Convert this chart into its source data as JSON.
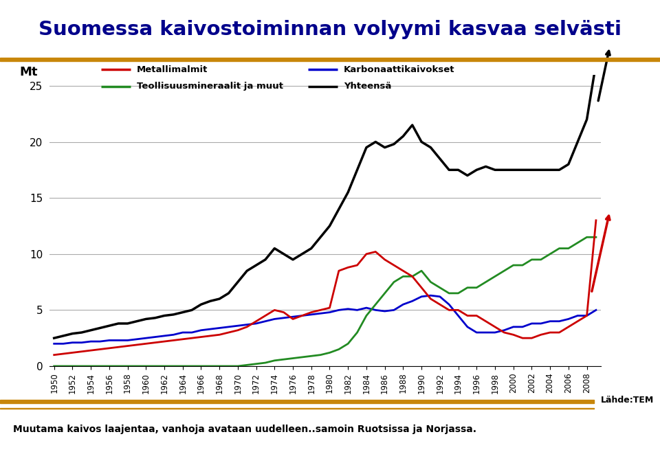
{
  "title": "Suomessa kaivostoiminnan volyymi kasvaa selvästi",
  "ylabel": "Mt",
  "subtitle": "Muutama kaivos laajentaa, vanhoja avataan uudelleen..samoin Ruotsissa ja Norjassa.",
  "source": "Lähde:TEM",
  "legend_labels": [
    "Metallimalmit",
    "Karbonaattikaivokset",
    "Teollisuusmineraalit ja muut",
    "Yhteensä"
  ],
  "legend_colors": [
    "#cc0000",
    "#0000cc",
    "#228B22",
    "#000000"
  ],
  "title_color": "#00008B",
  "title_bar_color": "#C8860A",
  "years": [
    1950,
    1951,
    1952,
    1953,
    1954,
    1955,
    1956,
    1957,
    1958,
    1959,
    1960,
    1961,
    1962,
    1963,
    1964,
    1965,
    1966,
    1967,
    1968,
    1969,
    1970,
    1971,
    1972,
    1973,
    1974,
    1975,
    1976,
    1977,
    1978,
    1979,
    1980,
    1981,
    1982,
    1983,
    1984,
    1985,
    1986,
    1987,
    1988,
    1989,
    1990,
    1991,
    1992,
    1993,
    1994,
    1995,
    1996,
    1997,
    1998,
    1999,
    2000,
    2001,
    2002,
    2003,
    2004,
    2005,
    2006,
    2007,
    2008,
    2009
  ],
  "metallimalmit": [
    1.0,
    1.1,
    1.2,
    1.3,
    1.4,
    1.5,
    1.6,
    1.7,
    1.8,
    1.9,
    2.0,
    2.1,
    2.2,
    2.3,
    2.4,
    2.5,
    2.6,
    2.7,
    2.8,
    3.0,
    3.2,
    3.5,
    4.0,
    4.5,
    5.0,
    4.8,
    4.2,
    4.5,
    4.8,
    5.0,
    5.2,
    8.5,
    8.8,
    9.0,
    10.0,
    10.2,
    9.5,
    9.0,
    8.5,
    8.0,
    7.0,
    6.0,
    5.5,
    5.0,
    5.0,
    4.5,
    4.5,
    4.0,
    3.5,
    3.0,
    2.8,
    2.5,
    2.5,
    2.8,
    3.0,
    3.0,
    3.5,
    4.0,
    4.5,
    13.0
  ],
  "karbonaatti": [
    2.0,
    2.0,
    2.1,
    2.1,
    2.2,
    2.2,
    2.3,
    2.3,
    2.3,
    2.4,
    2.5,
    2.6,
    2.7,
    2.8,
    3.0,
    3.0,
    3.2,
    3.3,
    3.4,
    3.5,
    3.6,
    3.7,
    3.8,
    4.0,
    4.2,
    4.3,
    4.4,
    4.5,
    4.6,
    4.7,
    4.8,
    5.0,
    5.1,
    5.0,
    5.2,
    5.0,
    4.9,
    5.0,
    5.5,
    5.8,
    6.2,
    6.3,
    6.2,
    5.5,
    4.5,
    3.5,
    3.0,
    3.0,
    3.0,
    3.2,
    3.5,
    3.5,
    3.8,
    3.8,
    4.0,
    4.0,
    4.2,
    4.5,
    4.5,
    5.0
  ],
  "teollisuus": [
    0.0,
    0.0,
    0.0,
    0.0,
    0.0,
    0.0,
    0.0,
    0.0,
    0.0,
    0.0,
    0.0,
    0.0,
    0.0,
    0.0,
    0.0,
    0.0,
    0.0,
    0.0,
    0.0,
    0.0,
    0.0,
    0.1,
    0.2,
    0.3,
    0.5,
    0.6,
    0.7,
    0.8,
    0.9,
    1.0,
    1.2,
    1.5,
    2.0,
    3.0,
    4.5,
    5.5,
    6.5,
    7.5,
    8.0,
    8.0,
    8.5,
    7.5,
    7.0,
    6.5,
    6.5,
    7.0,
    7.0,
    7.5,
    8.0,
    8.5,
    9.0,
    9.0,
    9.5,
    9.5,
    10.0,
    10.5,
    10.5,
    11.0,
    11.5,
    11.5
  ],
  "yhteensa": [
    2.5,
    2.7,
    2.9,
    3.0,
    3.2,
    3.4,
    3.6,
    3.8,
    3.8,
    4.0,
    4.2,
    4.3,
    4.5,
    4.6,
    4.8,
    5.0,
    5.5,
    5.8,
    6.0,
    6.5,
    7.5,
    8.5,
    9.0,
    9.5,
    10.5,
    10.0,
    9.5,
    10.0,
    10.5,
    11.5,
    12.5,
    14.0,
    15.5,
    17.5,
    19.5,
    20.0,
    19.5,
    19.8,
    20.5,
    21.5,
    20.0,
    19.5,
    18.5,
    17.5,
    17.5,
    17.0,
    17.5,
    17.8,
    17.5,
    17.5,
    17.5,
    17.5,
    17.5,
    17.5,
    17.5,
    17.5,
    18.0,
    20.0,
    22.0,
    27.0
  ],
  "ylim": [
    0,
    26
  ],
  "yticks": [
    0,
    5,
    10,
    15,
    20,
    25
  ],
  "background_color": "#ffffff",
  "plot_bg": "#ffffff"
}
